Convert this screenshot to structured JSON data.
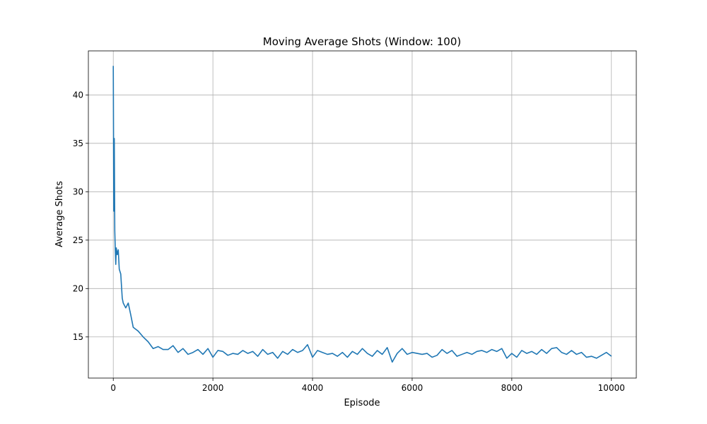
{
  "chart_data": {
    "type": "line",
    "title": "Moving Average Shots (Window: 100)",
    "x_label": "Episode",
    "y_label": "Average Shots",
    "x": [
      0,
      5,
      10,
      20,
      30,
      40,
      50,
      60,
      80,
      100,
      120,
      150,
      180,
      200,
      250,
      300,
      350,
      400,
      450,
      500,
      600,
      700,
      800,
      900,
      1000,
      1100,
      1200,
      1300,
      1400,
      1500,
      1600,
      1700,
      1800,
      1900,
      2000,
      2100,
      2200,
      2300,
      2400,
      2500,
      2600,
      2700,
      2800,
      2900,
      3000,
      3100,
      3200,
      3300,
      3400,
      3500,
      3600,
      3700,
      3800,
      3900,
      4000,
      4100,
      4200,
      4300,
      4400,
      4500,
      4600,
      4700,
      4800,
      4900,
      5000,
      5100,
      5200,
      5300,
      5400,
      5500,
      5600,
      5700,
      5800,
      5900,
      6000,
      6100,
      6200,
      6300,
      6400,
      6500,
      6600,
      6700,
      6800,
      6900,
      7000,
      7100,
      7200,
      7300,
      7400,
      7500,
      7600,
      7700,
      7800,
      7900,
      8000,
      8100,
      8200,
      8300,
      8400,
      8500,
      8600,
      8700,
      8800,
      8900,
      9000,
      9100,
      9200,
      9300,
      9400,
      9500,
      9600,
      9700,
      9800,
      9900,
      10000
    ],
    "series": [
      {
        "name": "Average Shots",
        "color": "#1f77b4",
        "values": [
          43,
          36,
          28,
          35.5,
          26,
          24,
          22.5,
          24.2,
          23.5,
          24,
          22,
          21.5,
          19,
          18.5,
          18,
          18.5,
          17.3,
          16,
          15.8,
          15.6,
          15,
          14.5,
          13.8,
          14,
          13.7,
          13.7,
          14.1,
          13.4,
          13.8,
          13.2,
          13.4,
          13.7,
          13.2,
          13.8,
          12.9,
          13.6,
          13.5,
          13.1,
          13.3,
          13.2,
          13.6,
          13.3,
          13.5,
          13.0,
          13.7,
          13.2,
          13.4,
          12.8,
          13.5,
          13.2,
          13.7,
          13.4,
          13.6,
          14.2,
          12.9,
          13.6,
          13.4,
          13.2,
          13.3,
          13.0,
          13.4,
          12.9,
          13.5,
          13.2,
          13.8,
          13.3,
          13.0,
          13.6,
          13.2,
          13.9,
          12.4,
          13.3,
          13.8,
          13.2,
          13.4,
          13.3,
          13.2,
          13.3,
          12.9,
          13.1,
          13.7,
          13.3,
          13.6,
          13.0,
          13.2,
          13.4,
          13.2,
          13.5,
          13.6,
          13.4,
          13.7,
          13.5,
          13.8,
          12.8,
          13.3,
          12.9,
          13.6,
          13.3,
          13.5,
          13.2,
          13.7,
          13.3,
          13.8,
          13.9,
          13.4,
          13.2,
          13.6,
          13.2,
          13.4,
          12.9,
          13.0,
          12.8,
          13.1,
          13.4,
          13.0
        ]
      }
    ],
    "xlim": [
      -500,
      10500
    ],
    "ylim": [
      10.75,
      44.55
    ],
    "xticks": [
      0,
      2000,
      4000,
      6000,
      8000,
      10000
    ],
    "yticks": [
      15,
      20,
      25,
      30,
      35,
      40
    ],
    "grid": true
  }
}
